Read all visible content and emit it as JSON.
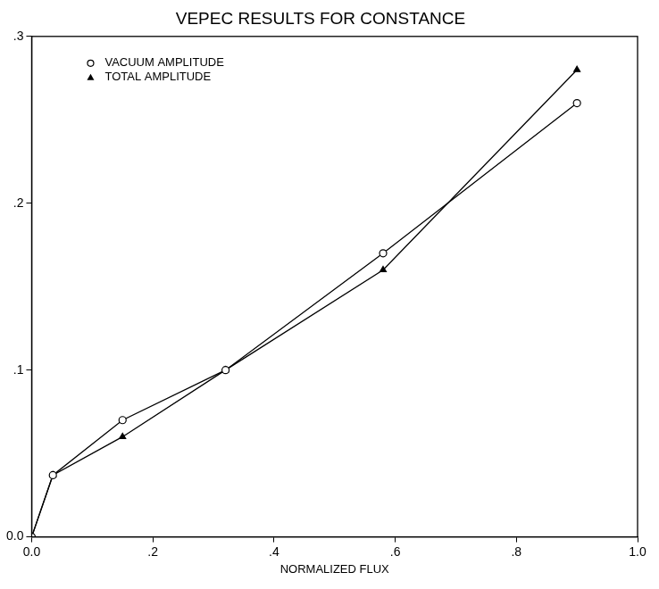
{
  "chart_data": {
    "type": "line",
    "title": "VEPEC RESULTS FOR CONSTANCE",
    "x_label": "NORMALIZED FLUX",
    "x": [
      0,
      0.035,
      0.15,
      0.32,
      0.58,
      0.9
    ],
    "series": [
      {
        "name": "VACUUM AMPLITUDE",
        "color": "#000000",
        "marker": "circle",
        "line_style": "solid",
        "values": [
          0,
          0.037,
          0.07,
          0.1,
          0.17,
          0.26
        ]
      },
      {
        "name": "TOTAL AMPLITUDE",
        "color": "#000000",
        "marker": "triangle",
        "line_style": "solid",
        "values": [
          0,
          0.037,
          0.06,
          0.1,
          0.16,
          0.28
        ]
      }
    ],
    "xlim": [
      0,
      1
    ],
    "xticks": [
      {
        "value": 0,
        "label": "0.0"
      },
      {
        "value": 0.2,
        "label": ".2"
      },
      {
        "value": 0.4,
        "label": ".4"
      },
      {
        "value": 0.6,
        "label": ".6"
      },
      {
        "value": 0.8,
        "label": ".8"
      },
      {
        "value": 1,
        "label": "1.0"
      }
    ],
    "ylim": [
      0,
      0.3
    ],
    "yticks": [
      {
        "value": 0,
        "label": "0.0"
      },
      {
        "value": 0.1,
        "label": ".1"
      },
      {
        "value": 0.2,
        "label": ".2"
      },
      {
        "value": 0.3,
        "label": ".3"
      }
    ],
    "grid": false,
    "legend": "upper left"
  }
}
